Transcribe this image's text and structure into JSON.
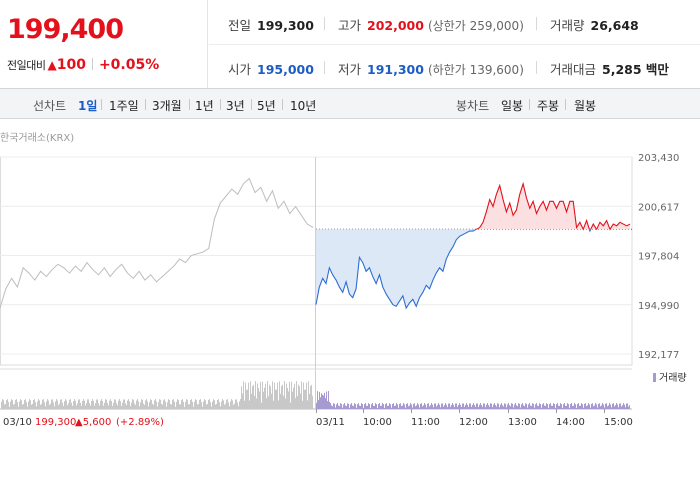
{
  "quote": {
    "price": "199,400",
    "change_label": "전일대비",
    "change_arrow": "▲",
    "change_value": "100",
    "change_pct": "+0.05%"
  },
  "stats": {
    "prev_close": {
      "label": "전일",
      "value": "199,300"
    },
    "high": {
      "label": "고가",
      "value": "202,000",
      "sub": "(상한가 259,000)"
    },
    "volume": {
      "label": "거래량",
      "value": "26,648"
    },
    "open": {
      "label": "시가",
      "value": "195,000"
    },
    "low": {
      "label": "저가",
      "value": "191,300",
      "sub": "(하한가 139,600)"
    },
    "amount": {
      "label": "거래대금",
      "value": "5,285 백만"
    }
  },
  "period_bar": {
    "line_label": "선차트",
    "periods": [
      "1일",
      "1주일",
      "3개월",
      "1년",
      "3년",
      "5년",
      "10년"
    ],
    "active_period": "1일",
    "candle_label": "봉차트",
    "candles": [
      "일봉",
      "주봉",
      "월봉"
    ]
  },
  "chart_data": {
    "type": "line",
    "source": "한국거래소(KRX)",
    "y_ticks": [
      "203,430",
      "200,617",
      "197,804",
      "194,990",
      "192,177"
    ],
    "ylim": [
      192177,
      203430
    ],
    "reference_price": 199300,
    "x_labels": [
      "03/11",
      "10:00",
      "11:00",
      "12:00",
      "13:00",
      "14:00",
      "15:00"
    ],
    "volume_legend": "거래량",
    "prev_day": {
      "label_date": "03/10",
      "label_price": "199,300",
      "label_change": "▲5,600",
      "label_pct": "(+2.89%)",
      "price": [
        194800,
        195900,
        196500,
        196000,
        197100,
        196800,
        196400,
        196900,
        196600,
        197000,
        197300,
        197100,
        196800,
        197200,
        196900,
        197400,
        197000,
        196700,
        197100,
        196600,
        197000,
        197300,
        196800,
        196500,
        196900,
        196400,
        196700,
        196300,
        196600,
        196900,
        197200,
        197600,
        197400,
        197800,
        197900,
        198000,
        198200,
        199900,
        200800,
        201200,
        201600,
        201300,
        201900,
        202200,
        201400,
        201700,
        200900,
        201500,
        200500,
        200900,
        200200,
        200600,
        200100,
        199600,
        199400
      ]
    },
    "today": {
      "series_color_down": "#2f6cd2",
      "series_color_up": "#e4101b",
      "price": [
        195000,
        196000,
        196500,
        196200,
        197100,
        196700,
        196400,
        196000,
        195700,
        196300,
        195600,
        195400,
        195900,
        197700,
        197400,
        196900,
        197100,
        196600,
        196200,
        196700,
        196000,
        195600,
        195300,
        195000,
        194900,
        195200,
        195500,
        194800,
        195100,
        195300,
        194900,
        195400,
        195700,
        196100,
        195900,
        196400,
        196800,
        197100,
        196900,
        197600,
        198000,
        198300,
        198700,
        198900,
        199000,
        199100,
        199200,
        199200,
        199300,
        199400,
        199700,
        200300,
        201000,
        200600,
        201300,
        201800,
        201000,
        200300,
        200800,
        200100,
        200400,
        201300,
        201900,
        201100,
        200500,
        200900,
        200200,
        200600,
        200900,
        200400,
        200900,
        200900,
        200500,
        200900,
        200900,
        200300,
        200900,
        200900,
        199400,
        199700,
        199300,
        199800,
        199200,
        199600,
        199300,
        199700,
        199500,
        199800,
        199300,
        199600,
        199500,
        199700,
        199600,
        199500,
        199600
      ]
    }
  },
  "colors": {
    "up": "#e4101b",
    "down": "#1c5cc4",
    "line_down": "#2f6cd2",
    "prev_line": "#bdbdbd",
    "volume": "#a79ad1",
    "prev_volume": "#c8c8c8"
  }
}
